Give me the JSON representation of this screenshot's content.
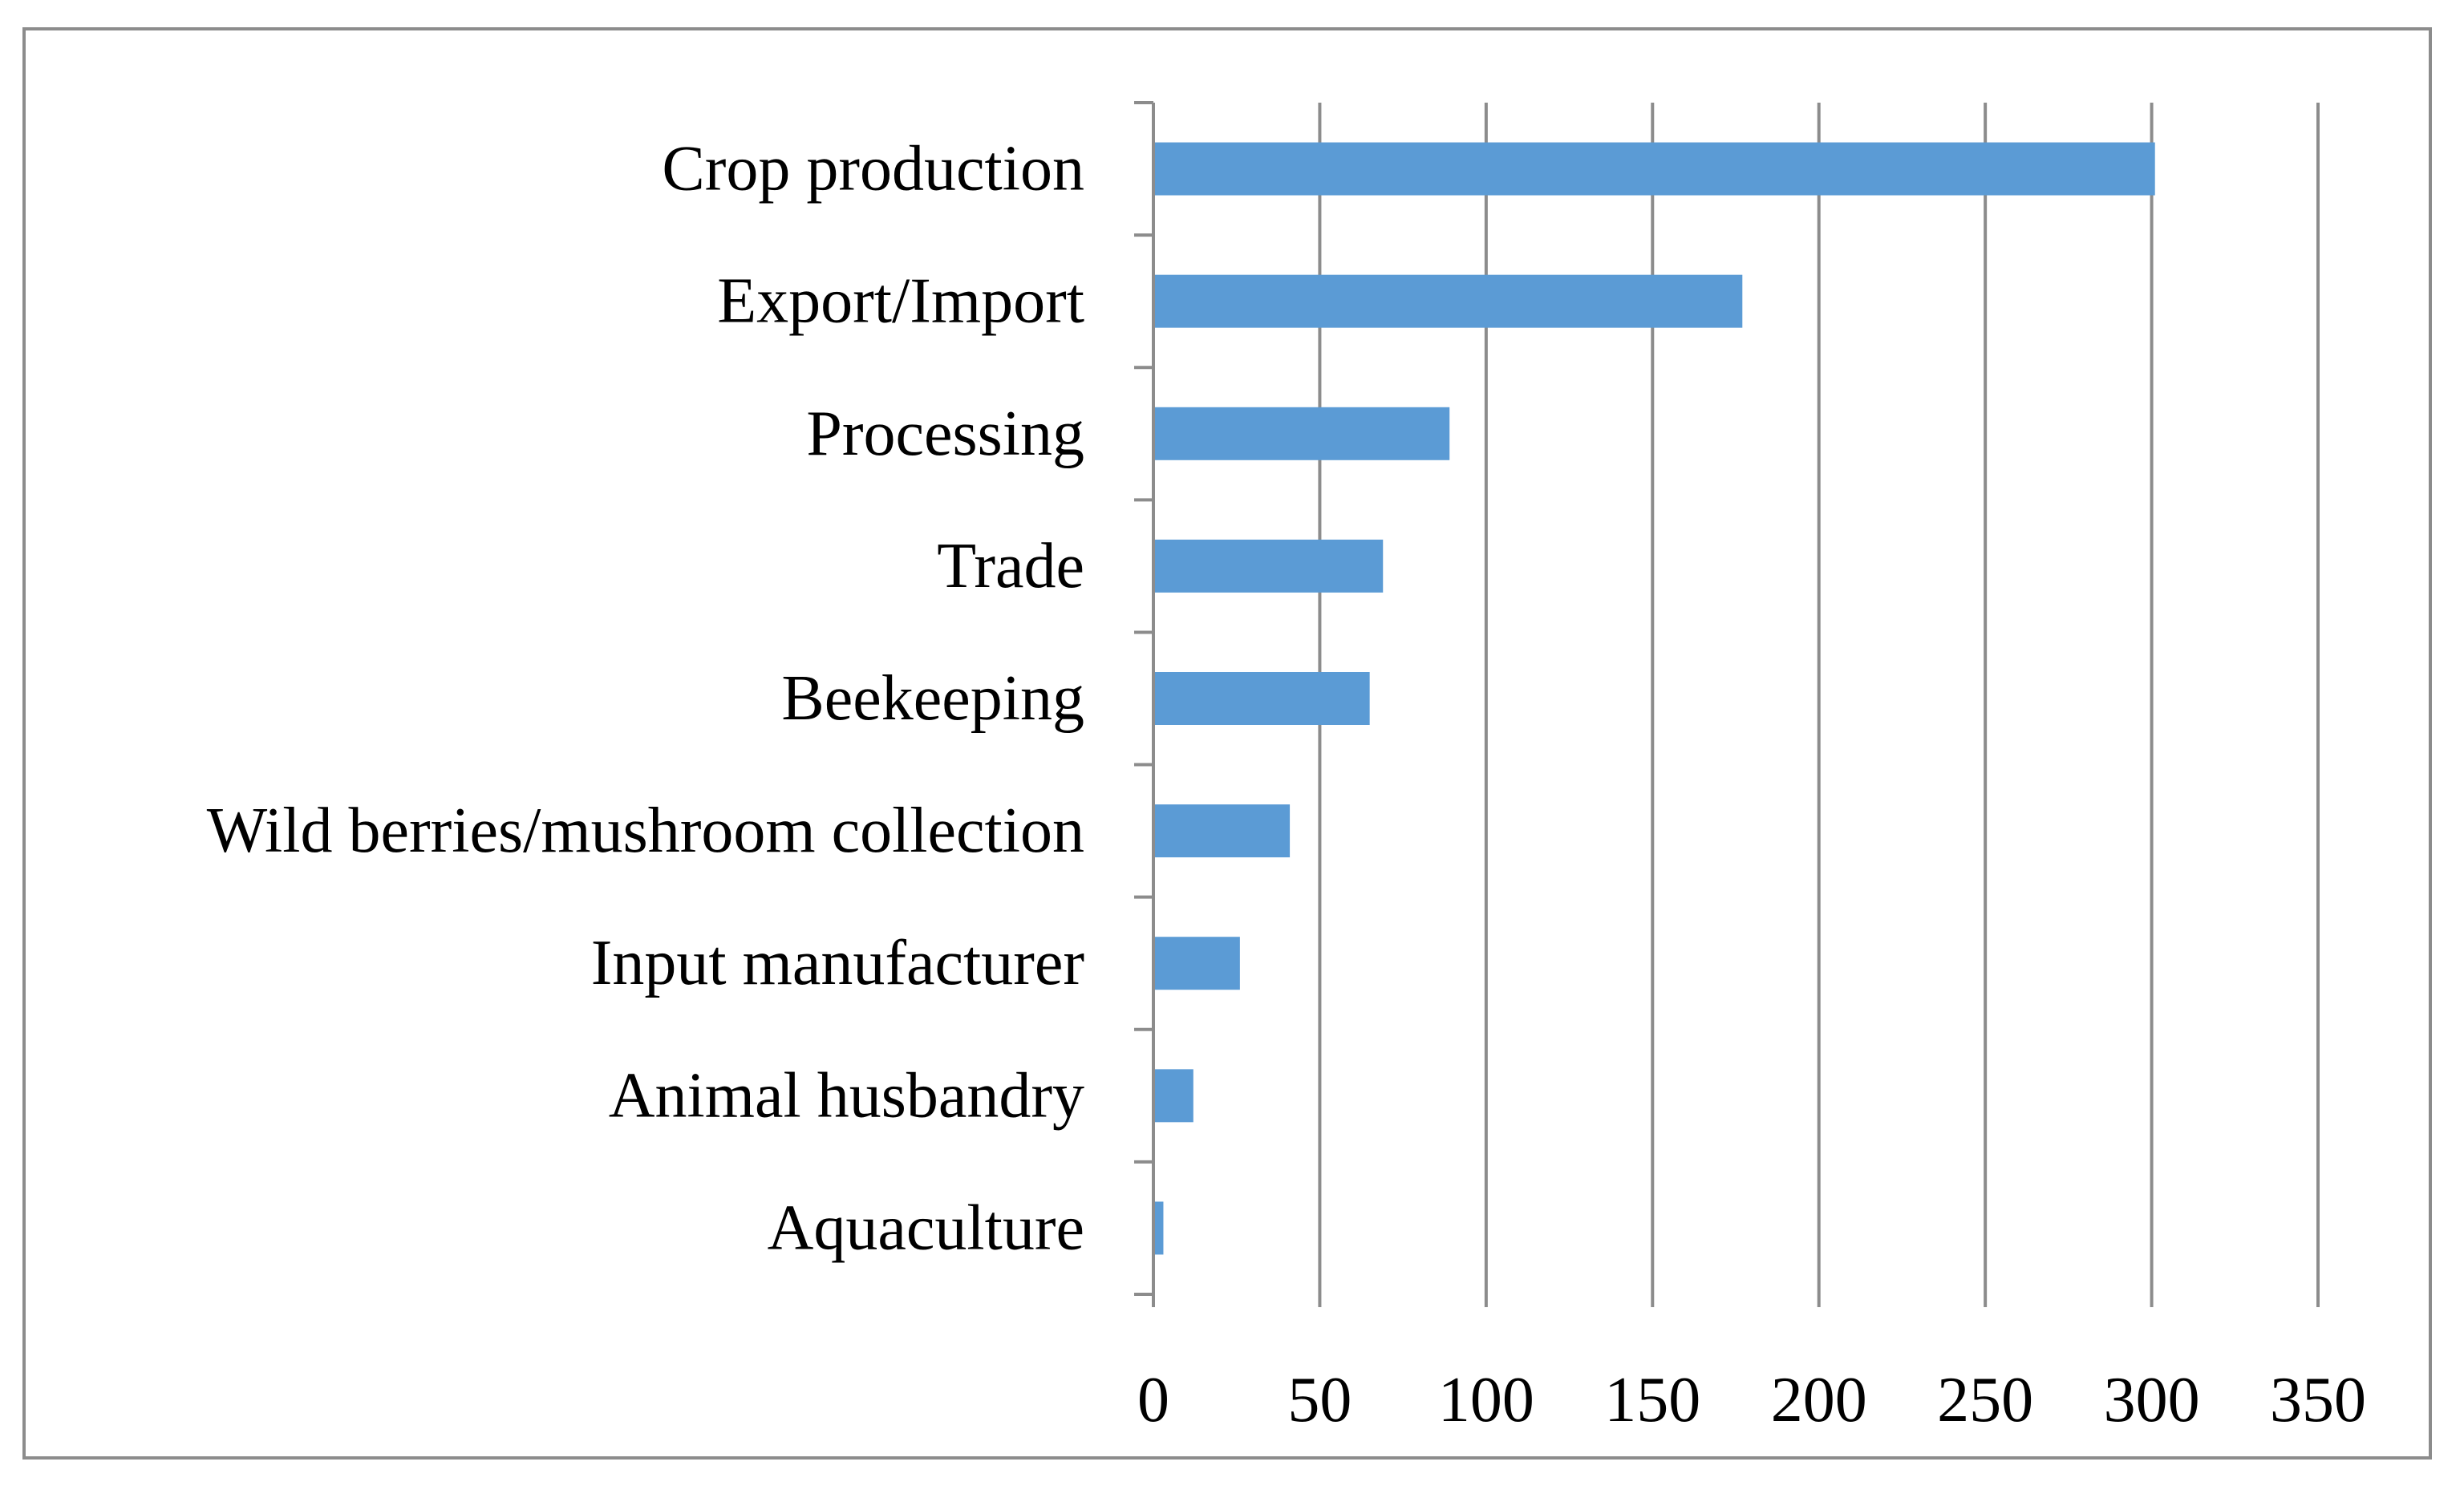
{
  "chart_data": {
    "type": "bar",
    "orientation": "horizontal",
    "title": "",
    "xlabel": "",
    "ylabel": "",
    "categories": [
      "Crop production",
      "Export/Import",
      "Processing",
      "Trade",
      "Beekeeping",
      "Wild berries/mushroom collection",
      "Input manufacturer",
      "Animal husbandry",
      "Aquaculture"
    ],
    "values": [
      301,
      177,
      89,
      69,
      65,
      41,
      26,
      12,
      3
    ],
    "xlim": [
      0,
      350
    ],
    "xticks": [
      "0",
      "50",
      "100",
      "150",
      "200",
      "250",
      "300",
      "350"
    ],
    "grid": "vertical",
    "legend": "none",
    "colors": {
      "bar": "#5b9bd5",
      "grid": "#8c8c8c",
      "axis": "#8c8c8c",
      "frame": "#8c8c8c",
      "text": "#000000"
    }
  }
}
